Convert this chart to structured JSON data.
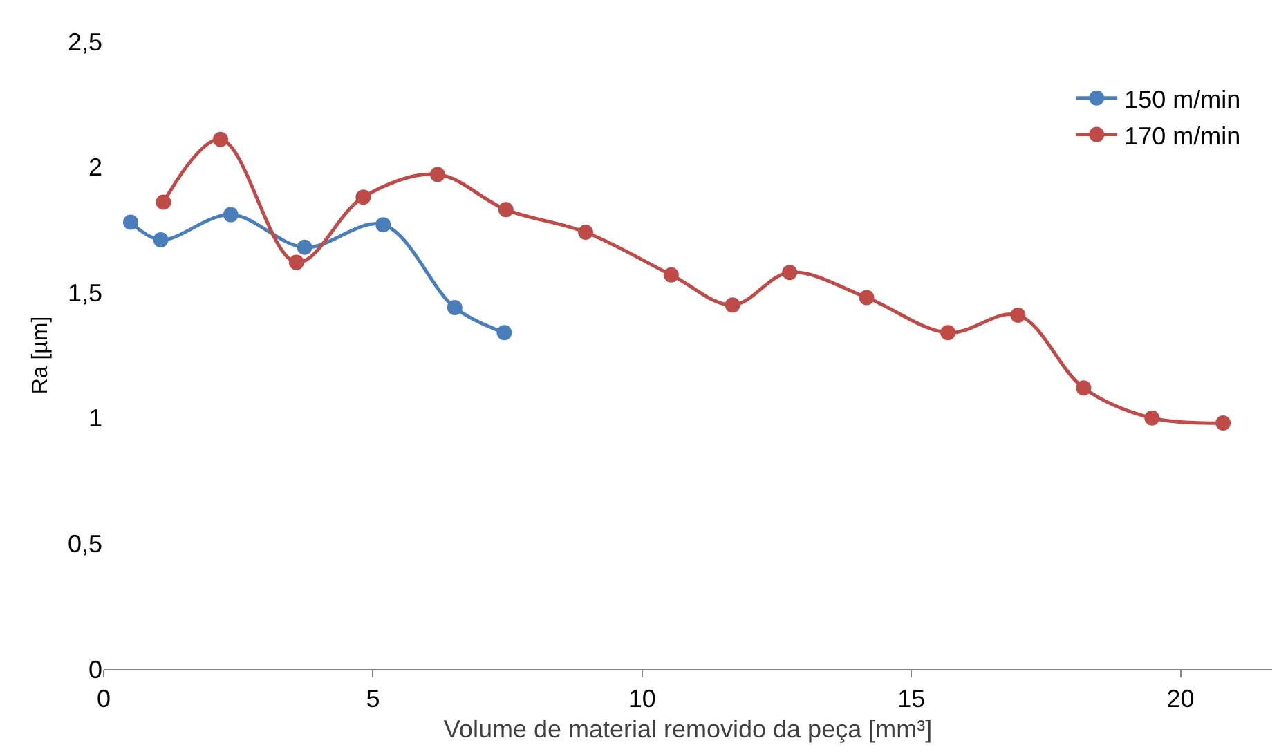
{
  "chart_data": {
    "type": "line",
    "xlabel": "Volume de material removido da peça [mm³]",
    "ylabel": "Ra [µm]",
    "xlim": [
      0,
      21.7
    ],
    "xticks": [
      0,
      5,
      10,
      15,
      20
    ],
    "ylim": [
      0,
      2.5
    ],
    "yticks": [
      0,
      {
        "value": 0.5,
        "label": "0,5"
      },
      1,
      {
        "value": 1.5,
        "label": "1,5"
      },
      2,
      {
        "value": 2.5,
        "label": "2,5"
      }
    ],
    "legend": "top right",
    "marker": "circle",
    "line_style": "solid",
    "series": [
      {
        "name": "150 m/min",
        "color": "#4a7ebb",
        "x": [
          0.5,
          1.06,
          2.36,
          3.73,
          5.19,
          6.52,
          7.44
        ],
        "values": [
          1.78,
          1.71,
          1.81,
          1.68,
          1.77,
          1.44,
          1.34
        ]
      },
      {
        "name": "170 m/min",
        "color": "#be4b48",
        "x": [
          1.11,
          2.17,
          3.58,
          4.82,
          6.2,
          7.47,
          8.95,
          10.54,
          11.68,
          12.74,
          14.17,
          15.68,
          16.98,
          18.2,
          19.47,
          20.79
        ],
        "values": [
          1.86,
          2.11,
          1.62,
          1.88,
          1.97,
          1.83,
          1.74,
          1.57,
          1.45,
          1.58,
          1.48,
          1.34,
          1.41,
          1.12,
          1.0,
          0.98
        ]
      }
    ]
  }
}
